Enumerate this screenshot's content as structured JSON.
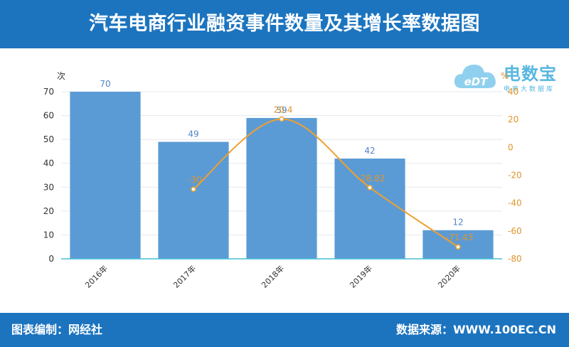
{
  "header": {
    "title": "汽车电商行业融资事件数量及其增长率数据图"
  },
  "footer": {
    "left": "图表编制：网经社",
    "right": "数据来源：WWW.100EC.CN"
  },
  "logo": {
    "cloud_text": "eDT",
    "name": "电数宝",
    "subtitle": "电商大数据库"
  },
  "colors": {
    "header_bg": "#1c74bf",
    "bar": "#5b9bd5",
    "line": "#f0a030",
    "bar_label": "#4f86c6",
    "axis_baseline": "#45c0d8"
  },
  "chart_data": {
    "type": "bar",
    "categories": [
      "2016年",
      "2017年",
      "2018年",
      "2019年",
      "2020年"
    ],
    "series": [
      {
        "type": "bar",
        "axis": "left",
        "values": [
          70,
          49,
          59,
          42,
          12
        ],
        "labels": [
          "70",
          "49",
          "59",
          "42",
          "12"
        ]
      },
      {
        "type": "line",
        "axis": "right",
        "values": [
          null,
          -30,
          20.4,
          -28.82,
          -71.43
        ],
        "labels": [
          "",
          "-30",
          "20.4",
          "-28.82",
          "-71.43"
        ]
      }
    ],
    "left_axis": {
      "unit": "次",
      "ylim": [
        0,
        70
      ],
      "ticks": [
        0,
        10,
        20,
        30,
        40,
        50,
        60,
        70
      ]
    },
    "right_axis": {
      "unit": "%",
      "ylim": [
        -80,
        40
      ],
      "ticks": [
        -80,
        -60,
        -40,
        -20,
        0,
        20,
        40
      ]
    },
    "grid": true
  }
}
